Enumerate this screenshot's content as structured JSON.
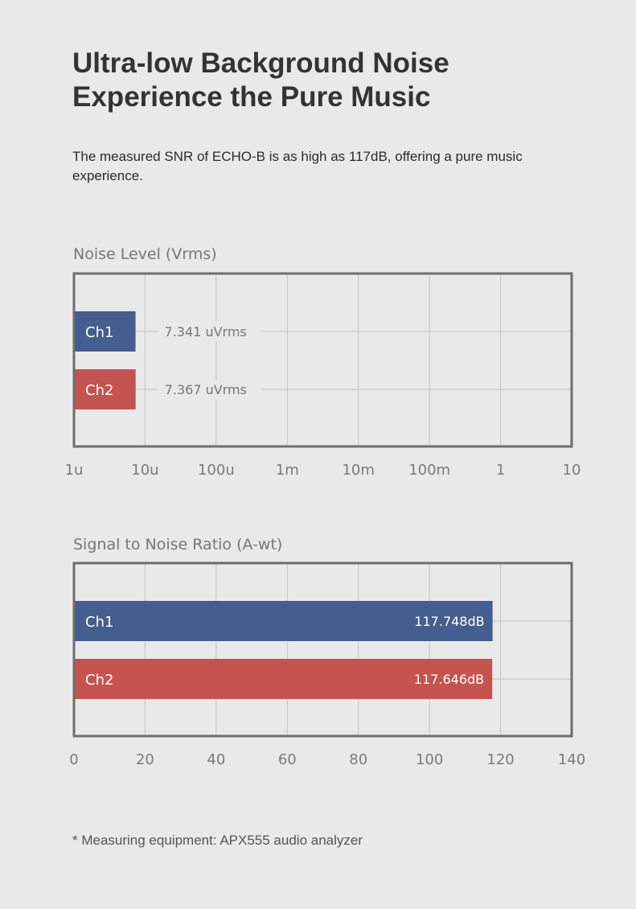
{
  "header": {
    "title_line1": "Ultra-low Background Noise",
    "title_line2": "Experience the Pure Music"
  },
  "intro": "The measured SNR of ECHO-B is as high as 117dB, offering a pure music experience.",
  "chart_data": [
    {
      "type": "bar",
      "orientation": "horizontal",
      "title": "Noise Level (Vrms)",
      "xscale": "log",
      "xlim": [
        1e-06,
        10
      ],
      "x_ticks": [
        1e-06,
        1e-05,
        0.0001,
        0.001,
        0.01,
        0.1,
        1,
        10
      ],
      "x_tick_labels": [
        "1u",
        "10u",
        "100u",
        "1m",
        "10m",
        "100m",
        "1",
        "10"
      ],
      "categories": [
        "Ch1",
        "Ch2"
      ],
      "values": [
        7.341e-06,
        7.367e-06
      ],
      "value_labels": [
        "7.341 uVrms",
        "7.367 uVrms"
      ],
      "value_label_position": "outside",
      "colors": [
        "#465d8f",
        "#c55350"
      ],
      "grid": true
    },
    {
      "type": "bar",
      "orientation": "horizontal",
      "title": "Signal to Noise Ratio (A-wt)",
      "xscale": "linear",
      "xlim": [
        0,
        140
      ],
      "x_ticks": [
        0,
        20,
        40,
        60,
        80,
        100,
        120,
        140
      ],
      "x_tick_labels": [
        "0",
        "20",
        "40",
        "60",
        "80",
        "100",
        "120",
        "140"
      ],
      "categories": [
        "Ch1",
        "Ch2"
      ],
      "values": [
        117.748,
        117.646
      ],
      "value_labels": [
        "117.748dB",
        "117.646dB"
      ],
      "value_label_position": "inside-end",
      "colors": [
        "#465d8f",
        "#c55350"
      ],
      "grid": true
    }
  ],
  "footnote": "* Measuring equipment: APX555 audio analyzer",
  "colors": {
    "background": "#e9e9e9",
    "frame": "#6e6e6e",
    "grid": "#c4c4c4",
    "tick_text": "#7a7a7a",
    "ch1": "#465d8f",
    "ch2": "#c55350"
  }
}
